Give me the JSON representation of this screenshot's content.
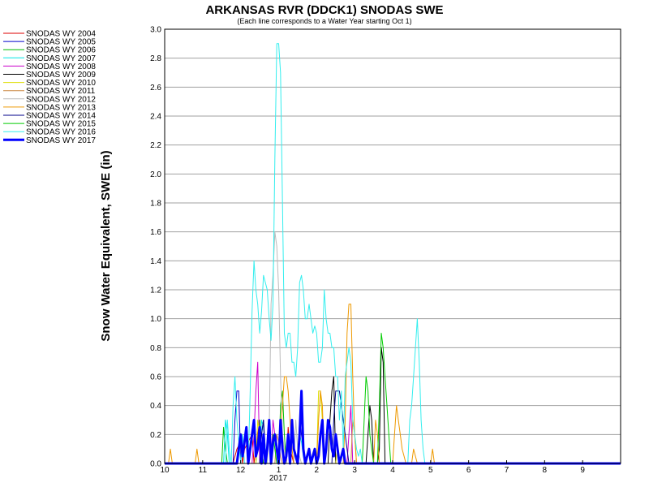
{
  "chart_data": {
    "type": "line",
    "title": "ARKANSAS RVR (DDCK1) SNODAS SWE",
    "subtitle": "(Each line corresponds to a Water Year starting Oct 1)",
    "ylabel": "Snow Water Equivalent, SWE (in)",
    "xlabel": "",
    "x_tick_labels": [
      "10",
      "11",
      "12",
      "1",
      "2",
      "3",
      "4",
      "5",
      "6",
      "7",
      "8",
      "9"
    ],
    "x_year_label": "2017",
    "x_unit": "months since Oct 1",
    "xlim": [
      0,
      12
    ],
    "ylim": [
      0,
      3.0
    ],
    "y_ticks": [
      "0.0",
      "0.2",
      "0.4",
      "0.6",
      "0.8",
      "1.0",
      "1.2",
      "1.4",
      "1.6",
      "1.8",
      "2.0",
      "2.2",
      "2.4",
      "2.6",
      "2.8",
      "3.0"
    ],
    "grid": true,
    "legend_position": "left",
    "series": [
      {
        "name": "SNODAS WY 2004",
        "color": "#dd0000",
        "width": 1,
        "x": [
          0,
          1.8,
          1.9,
          2.0,
          2.05,
          2.1,
          2.3,
          2.35,
          2.5,
          2.55,
          2.6,
          3.2,
          3.25,
          3.3,
          3.35,
          3.4,
          12
        ],
        "y": [
          0,
          0,
          0.1,
          0.15,
          0,
          0.1,
          0.2,
          0,
          0.3,
          0.1,
          0,
          0,
          0.25,
          0.1,
          0.05,
          0,
          0
        ]
      },
      {
        "name": "SNODAS WY 2005",
        "color": "#0000cc",
        "width": 1,
        "x": [
          0,
          1.8,
          1.85,
          1.9,
          1.95,
          2.0,
          2.5,
          2.55,
          2.6,
          2.65,
          2.7,
          3.5,
          3.55,
          3.6,
          3.65,
          3.7,
          12
        ],
        "y": [
          0,
          0,
          0.3,
          0.5,
          0.5,
          0,
          0,
          0.2,
          0.3,
          0.1,
          0,
          0,
          0.3,
          0.2,
          0.1,
          0,
          0
        ]
      },
      {
        "name": "SNODAS WY 2006",
        "color": "#00bb00",
        "width": 1,
        "x": [
          0,
          1.5,
          1.55,
          1.6,
          1.65,
          2.4,
          2.45,
          2.5,
          2.55,
          2.6,
          3.0,
          3.05,
          3.1,
          3.15,
          3.2,
          12
        ],
        "y": [
          0,
          0,
          0.25,
          0.1,
          0,
          0,
          0.15,
          0.3,
          0.1,
          0,
          0,
          0.4,
          0.5,
          0.2,
          0,
          0
        ]
      },
      {
        "name": "SNODAS WY 2007",
        "color": "#00e5e5",
        "width": 1,
        "x": [
          0,
          1.55,
          1.6,
          1.65,
          1.7,
          2.5,
          2.55,
          2.6,
          2.65,
          2.7,
          3.5,
          3.55,
          3.6,
          3.65,
          3.7,
          12
        ],
        "y": [
          0,
          0,
          0.3,
          0.2,
          0,
          0,
          0.3,
          0.25,
          0.1,
          0,
          0,
          0.2,
          0.15,
          0.05,
          0,
          0
        ]
      },
      {
        "name": "SNODAS WY 2008",
        "color": "#cc00cc",
        "width": 1,
        "x": [
          0,
          2.3,
          2.35,
          2.4,
          2.45,
          2.5,
          2.8,
          2.85,
          2.9,
          2.95,
          3.0,
          4.8,
          4.85,
          4.9,
          4.95,
          12
        ],
        "y": [
          0,
          0,
          0.2,
          0.5,
          0.7,
          0,
          0,
          0.3,
          0.2,
          0.1,
          0,
          0,
          0.2,
          0.4,
          0,
          0
        ]
      },
      {
        "name": "SNODAS WY 2009",
        "color": "#000000",
        "width": 1,
        "x": [
          0,
          4.3,
          4.35,
          4.4,
          4.45,
          4.5,
          5.3,
          5.35,
          5.4,
          5.45,
          5.5,
          5.6,
          5.65,
          5.7,
          5.75,
          5.8,
          12
        ],
        "y": [
          0,
          0,
          0.3,
          0.5,
          0.6,
          0,
          0,
          0.2,
          0.4,
          0.3,
          0,
          0,
          0.1,
          0.8,
          0.7,
          0,
          0
        ]
      },
      {
        "name": "SNODAS WY 2010",
        "color": "#dddd00",
        "width": 1,
        "x": [
          0,
          2.4,
          2.45,
          2.5,
          2.55,
          4.0,
          4.05,
          4.1,
          4.15,
          4.2,
          4.5,
          4.55,
          4.6,
          12
        ],
        "y": [
          0,
          0,
          0.3,
          0.2,
          0,
          0,
          0.5,
          0.5,
          0.3,
          0,
          0,
          0.1,
          0,
          0
        ]
      },
      {
        "name": "SNODAS WY 2011",
        "color": "#cc8844",
        "width": 1,
        "x": [
          0,
          2.9,
          2.95,
          3.0,
          3.05,
          3.1,
          4.9,
          4.95,
          5.0,
          5.05,
          12
        ],
        "y": [
          0,
          0,
          0.2,
          0.15,
          0.05,
          0,
          0,
          0.3,
          0.2,
          0,
          0
        ]
      },
      {
        "name": "SNODAS WY 2012",
        "color": "#bbbbbb",
        "width": 1,
        "x": [
          0,
          2.7,
          2.75,
          2.8,
          2.85,
          2.9,
          2.95,
          3.0,
          3.05,
          3.1,
          3.15,
          3.2,
          3.4,
          3.45,
          3.5,
          3.6,
          12
        ],
        "y": [
          0,
          0,
          0.2,
          1.1,
          1.3,
          1.6,
          1.5,
          1.2,
          0.6,
          0.2,
          0.1,
          0,
          0,
          0.3,
          0.1,
          0,
          0
        ]
      },
      {
        "name": "SNODAS WY 2013",
        "color": "#ee9900",
        "width": 1,
        "x": [
          0,
          0.1,
          0.15,
          0.2,
          0.8,
          0.85,
          0.9,
          3.0,
          3.05,
          3.1,
          3.15,
          3.2,
          3.25,
          3.3,
          3.35,
          3.4,
          4.0,
          4.05,
          4.1,
          4.15,
          4.2,
          4.7,
          4.75,
          4.8,
          4.85,
          4.9,
          4.95,
          5.0,
          5.05,
          5.5,
          5.55,
          5.6,
          5.65,
          6.0,
          6.05,
          6.1,
          6.15,
          6.2,
          6.25,
          6.3,
          6.35,
          6.5,
          6.55,
          6.6,
          6.65,
          7.0,
          7.05,
          7.1,
          12
        ],
        "y": [
          0,
          0,
          0.1,
          0,
          0,
          0.1,
          0,
          0,
          0.2,
          0.4,
          0.6,
          0.6,
          0.5,
          0.3,
          0.1,
          0,
          0,
          0.3,
          0.5,
          0.4,
          0,
          0,
          0.3,
          0.9,
          1.1,
          1.1,
          0.6,
          0.2,
          0,
          0,
          0.3,
          0.2,
          0,
          0,
          0.2,
          0.4,
          0.3,
          0.2,
          0.1,
          0.05,
          0,
          0,
          0.1,
          0.05,
          0,
          0,
          0.1,
          0,
          0
        ]
      },
      {
        "name": "SNODAS WY 2014",
        "color": "#000088",
        "width": 1,
        "x": [
          0,
          2.5,
          2.55,
          2.6,
          2.65,
          4.4,
          4.45,
          4.5,
          4.55,
          4.6,
          4.65,
          4.7,
          4.75,
          4.8,
          4.85,
          12
        ],
        "y": [
          0,
          0,
          0.2,
          0.3,
          0,
          0,
          0.3,
          0.5,
          0.5,
          0.5,
          0.4,
          0.3,
          0.2,
          0.1,
          0,
          0
        ]
      },
      {
        "name": "SNODAS WY 2015",
        "color": "#00cc00",
        "width": 1,
        "x": [
          0,
          2.8,
          2.85,
          2.9,
          2.95,
          5.2,
          5.25,
          5.3,
          5.35,
          5.4,
          5.45,
          5.5,
          5.6,
          5.65,
          5.7,
          5.75,
          5.8,
          5.85,
          5.9,
          5.95,
          12
        ],
        "y": [
          0,
          0,
          0.2,
          0.1,
          0,
          0,
          0.3,
          0.6,
          0.5,
          0.2,
          0.1,
          0,
          0,
          0.4,
          0.9,
          0.8,
          0.6,
          0.4,
          0.2,
          0,
          0
        ]
      },
      {
        "name": "SNODAS WY 2016",
        "color": "#33eeee",
        "width": 1,
        "x": [
          0,
          1.6,
          1.65,
          1.7,
          1.75,
          1.8,
          1.85,
          1.9,
          2.0,
          2.05,
          2.1,
          2.2,
          2.25,
          2.3,
          2.35,
          2.4,
          2.45,
          2.5,
          2.55,
          2.6,
          2.7,
          2.75,
          2.8,
          2.85,
          2.9,
          2.95,
          3.0,
          3.05,
          3.1,
          3.15,
          3.2,
          3.25,
          3.3,
          3.35,
          3.4,
          3.45,
          3.5,
          3.55,
          3.6,
          3.65,
          3.7,
          3.75,
          3.8,
          3.85,
          3.9,
          3.95,
          4.0,
          4.05,
          4.1,
          4.15,
          4.2,
          4.25,
          4.3,
          4.35,
          4.4,
          4.45,
          4.5,
          4.55,
          4.6,
          4.65,
          4.7,
          4.75,
          4.8,
          4.85,
          4.9,
          4.95,
          5.0,
          5.05,
          5.1,
          5.15,
          5.2,
          6.4,
          6.45,
          6.5,
          6.55,
          6.6,
          6.65,
          6.7,
          6.75,
          6.8,
          6.85,
          12
        ],
        "y": [
          0,
          0,
          0.3,
          0.1,
          0,
          0.4,
          0.6,
          0.3,
          0,
          0.2,
          0,
          0,
          0.5,
          1.05,
          1.4,
          1.2,
          1.1,
          0.9,
          1.05,
          1.3,
          1.2,
          1.0,
          0.85,
          1.1,
          2.1,
          2.9,
          2.9,
          2.7,
          1.8,
          0.9,
          0.8,
          0.9,
          0.9,
          0.7,
          0.7,
          0.6,
          0.8,
          1.25,
          1.3,
          1.2,
          1.0,
          1.0,
          1.1,
          1.0,
          0.9,
          0.95,
          0.9,
          0.7,
          0.7,
          0.8,
          1.2,
          1.0,
          0.9,
          0.9,
          0.8,
          0.8,
          0.6,
          0.6,
          0.3,
          0.5,
          0.1,
          0.6,
          0.7,
          0.8,
          0.7,
          0.3,
          0.2,
          0.1,
          0.05,
          0.1,
          0,
          0,
          0.3,
          0.4,
          0.6,
          0.8,
          1.0,
          0.7,
          0.3,
          0.1,
          0,
          0
        ]
      },
      {
        "name": "SNODAS WY 2017",
        "color": "#0000ff",
        "width": 3,
        "x": [
          0,
          1.9,
          1.95,
          2.0,
          2.05,
          2.1,
          2.15,
          2.2,
          2.25,
          2.3,
          2.35,
          2.4,
          2.45,
          2.5,
          2.55,
          2.6,
          2.65,
          2.7,
          2.75,
          2.8,
          2.85,
          2.9,
          2.95,
          3.0,
          3.05,
          3.1,
          3.15,
          3.2,
          3.25,
          3.3,
          3.35,
          3.4,
          3.45,
          3.5,
          3.55,
          3.6,
          3.65,
          3.7,
          3.75,
          3.8,
          3.85,
          3.9,
          3.95,
          4.0,
          4.05,
          4.1,
          4.15,
          4.2,
          4.25,
          4.3,
          4.35,
          4.4,
          4.45,
          4.5,
          4.55,
          4.6,
          4.65,
          4.7,
          4.75,
          4.8,
          12
        ],
        "y": [
          0,
          0,
          0.1,
          0.2,
          0.05,
          0.15,
          0.25,
          0,
          0.1,
          0.2,
          0.3,
          0.05,
          0.1,
          0.25,
          0,
          0.2,
          0,
          0.1,
          0.3,
          0,
          0.15,
          0.2,
          0.1,
          0,
          0.3,
          0.1,
          0,
          0.05,
          0.2,
          0,
          0.3,
          0.1,
          0.05,
          0,
          0.2,
          0.5,
          0.1,
          0,
          0.05,
          0.1,
          0,
          0.05,
          0.1,
          0,
          0.05,
          0.2,
          0.3,
          0,
          0.1,
          0.3,
          0.25,
          0.1,
          0.05,
          0.2,
          0.1,
          0,
          0.05,
          0.1,
          0,
          0,
          0
        ]
      }
    ]
  }
}
